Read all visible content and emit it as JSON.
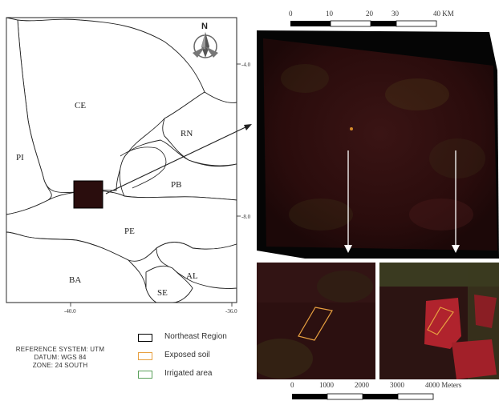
{
  "top_scale": {
    "labels": [
      "0",
      "10",
      "20",
      "30",
      "40 KM"
    ]
  },
  "north_arrow": {
    "label": "N",
    "icon": "north-arrow-icon"
  },
  "map": {
    "state_labels": [
      "CE",
      "PI",
      "RN",
      "PB",
      "PE",
      "BA",
      "AL",
      "SE"
    ],
    "lat_labels": [
      "-4.0",
      "-8.0"
    ],
    "lon_labels": [
      "-40.0",
      "-36.0"
    ]
  },
  "reference": {
    "line1": "REFERENCE SYSTEM: UTM",
    "line2": "DATUM: WGS 84",
    "line3": "ZONE: 24 SOUTH"
  },
  "legend": {
    "items": [
      {
        "label": "Northeast Region",
        "color": "#000000"
      },
      {
        "label": "Exposed soil",
        "color": "#e8a040"
      },
      {
        "label": "Irrigated area",
        "color": "#5aa05a"
      }
    ]
  },
  "bottom_scale": {
    "labels": [
      "0",
      "1000",
      "2000",
      "3000",
      "4000 Meters"
    ]
  }
}
